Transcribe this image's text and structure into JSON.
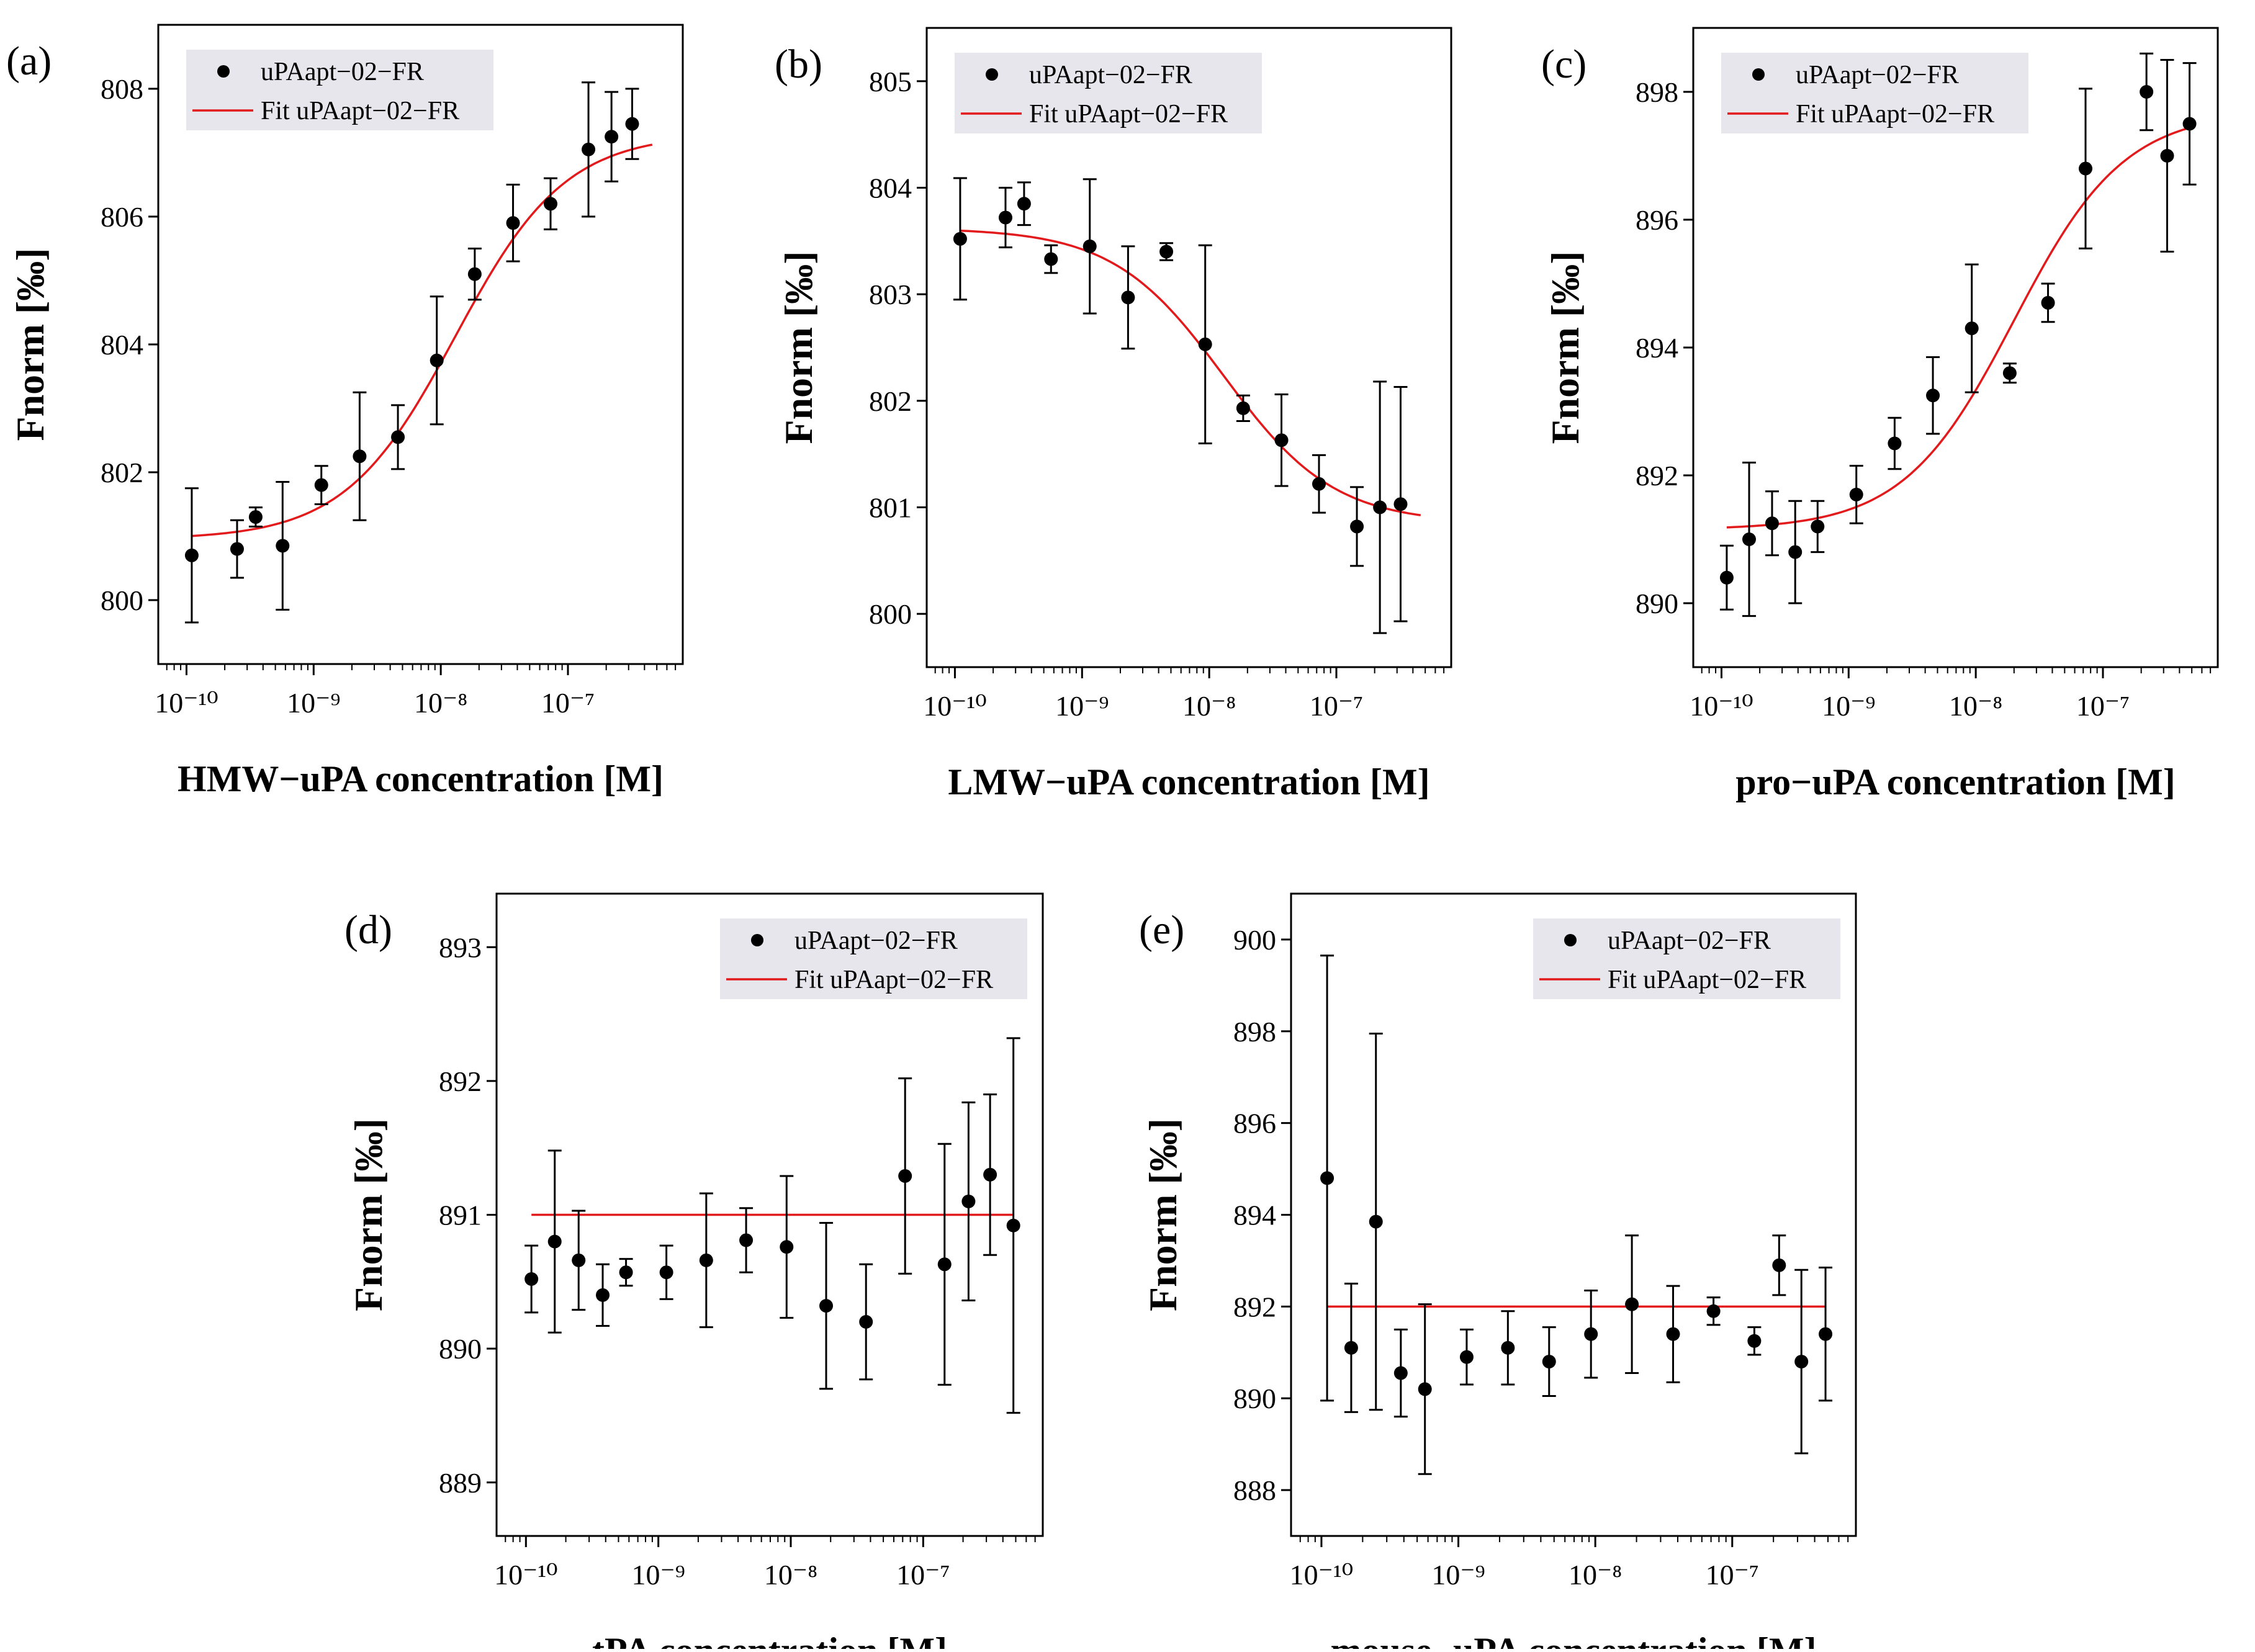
{
  "colors": {
    "fit": "#e31a1c",
    "points": "#000000",
    "legend_bg": "#e6e6ec",
    "axis": "#000000"
  },
  "chart_data": [
    {
      "type": "scatter",
      "panel": "(a)",
      "xlabel": "HMW−uPA concentration [M]",
      "ylabel": "Fnorm [‰]",
      "xscale": "log",
      "xlim": [
        6e-11,
        8e-07
      ],
      "ylim": [
        799.0,
        809.0
      ],
      "yticks": [
        800,
        802,
        804,
        806,
        808
      ],
      "xticks": [
        1e-10,
        1e-09,
        1e-08,
        1e-07
      ],
      "xtick_labels": [
        "10⁻¹⁰",
        "10⁻⁹",
        "10⁻⁸",
        "10⁻⁷"
      ],
      "legend": [
        "uPAapt−02−FR",
        "Fit uPAapt−02−FR"
      ],
      "series": [
        {
          "name": "uPAapt−02−FR",
          "x": [
            1.1e-10,
            2.5e-10,
            3.5e-10,
            5.7e-10,
            1.15e-09,
            2.3e-09,
            4.6e-09,
            9.3e-09,
            1.85e-08,
            3.7e-08,
            7.3e-08,
            1.45e-07,
            2.2e-07,
            3.2e-07
          ],
          "y": [
            800.7,
            800.8,
            801.3,
            800.85,
            801.8,
            802.25,
            802.55,
            803.75,
            805.1,
            805.9,
            806.2,
            807.05,
            807.25,
            807.45
          ],
          "err": [
            1.05,
            0.45,
            0.15,
            1.0,
            0.3,
            1.0,
            0.5,
            1.0,
            0.4,
            0.6,
            0.4,
            1.05,
            0.7,
            0.55
          ]
        }
      ],
      "fit": {
        "name": "Fit uPAapt−02−FR",
        "bottom": 800.95,
        "top": 807.3,
        "kd": 1.3e-08,
        "hill": 1.0,
        "x0": 1.1e-10,
        "x1": 4.6e-07
      }
    },
    {
      "type": "scatter",
      "panel": "(b)",
      "xlabel": "LMW−uPA concentration [M]",
      "ylabel": "Fnorm [‰]",
      "xscale": "log",
      "xlim": [
        6e-11,
        8e-07
      ],
      "ylim": [
        799.5,
        805.5
      ],
      "yticks": [
        800,
        801,
        802,
        803,
        804,
        805
      ],
      "xticks": [
        1e-10,
        1e-09,
        1e-08,
        1e-07
      ],
      "xtick_labels": [
        "10⁻¹⁰",
        "10⁻⁹",
        "10⁻⁸",
        "10⁻⁷"
      ],
      "legend": [
        "uPAapt−02−FR",
        "Fit uPAapt−02−FR"
      ],
      "series": [
        {
          "name": "uPAapt−02−FR",
          "x": [
            1.1e-10,
            2.5e-10,
            3.5e-10,
            5.7e-10,
            1.15e-09,
            2.3e-09,
            4.6e-09,
            9.3e-09,
            1.85e-08,
            3.7e-08,
            7.3e-08,
            1.45e-07,
            2.2e-07,
            3.2e-07
          ],
          "y": [
            803.52,
            803.72,
            803.85,
            803.33,
            803.45,
            802.97,
            803.4,
            802.53,
            801.93,
            801.63,
            801.22,
            800.82,
            801.0,
            801.03
          ],
          "err": [
            0.57,
            0.28,
            0.2,
            0.13,
            0.63,
            0.48,
            0.08,
            0.93,
            0.12,
            0.43,
            0.27,
            0.37,
            1.18,
            1.1
          ]
        }
      ],
      "fit": {
        "name": "Fit uPAapt−02−FR",
        "bottom": 800.85,
        "top": 803.62,
        "kd": 1.3e-08,
        "hill": -1.0,
        "x0": 1.1e-10,
        "x1": 4.6e-07
      }
    },
    {
      "type": "scatter",
      "panel": "(c)",
      "xlabel": "pro−uPA concentration [M]",
      "ylabel": "Fnorm [‰]",
      "xscale": "log",
      "xlim": [
        6e-11,
        8e-07
      ],
      "ylim": [
        889.0,
        899.0
      ],
      "yticks": [
        890,
        892,
        894,
        896,
        898
      ],
      "xticks": [
        1e-10,
        1e-09,
        1e-08,
        1e-07
      ],
      "xtick_labels": [
        "10⁻¹⁰",
        "10⁻⁹",
        "10⁻⁸",
        "10⁻⁷"
      ],
      "legend": [
        "uPAapt−02−FR",
        "Fit uPAapt−02−FR"
      ],
      "series": [
        {
          "name": "uPAapt−02−FR",
          "x": [
            1.1e-10,
            1.65e-10,
            2.5e-10,
            3.8e-10,
            5.7e-10,
            1.15e-09,
            2.3e-09,
            4.6e-09,
            9.3e-09,
            1.85e-08,
            3.7e-08,
            7.3e-08,
            2.2e-07,
            3.2e-07,
            4.8e-07
          ],
          "y": [
            890.4,
            891.0,
            891.25,
            890.8,
            891.2,
            891.7,
            892.5,
            893.25,
            894.3,
            893.6,
            894.7,
            896.8,
            898.0,
            897.0,
            897.5
          ],
          "err": [
            0.5,
            1.2,
            0.5,
            0.8,
            0.4,
            0.45,
            0.4,
            0.6,
            1.0,
            0.15,
            0.3,
            1.25,
            0.6,
            1.5,
            0.95
          ]
        }
      ],
      "fit": {
        "name": "Fit uPAapt−02−FR",
        "bottom": 891.15,
        "top": 897.7,
        "kd": 2e-08,
        "hill": 1.0,
        "x0": 1.1e-10,
        "x1": 4.6e-07
      }
    },
    {
      "type": "scatter",
      "panel": "(d)",
      "xlabel": "tPA concentration [M]",
      "ylabel": "Fnorm [‰]",
      "xscale": "log",
      "xlim": [
        6e-11,
        8e-07
      ],
      "ylim": [
        888.6,
        893.4
      ],
      "yticks": [
        889,
        890,
        891,
        892,
        893
      ],
      "xticks": [
        1e-10,
        1e-09,
        1e-08,
        1e-07
      ],
      "xtick_labels": [
        "10⁻¹⁰",
        "10⁻⁹",
        "10⁻⁸",
        "10⁻⁷"
      ],
      "legend": [
        "uPAapt−02−FR",
        "Fit uPAapt−02−FR"
      ],
      "series": [
        {
          "name": "uPAapt−02−FR",
          "x": [
            1.1e-10,
            1.65e-10,
            2.5e-10,
            3.8e-10,
            5.7e-10,
            1.15e-09,
            2.3e-09,
            4.6e-09,
            9.3e-09,
            1.85e-08,
            3.7e-08,
            7.3e-08,
            1.45e-07,
            2.2e-07,
            3.2e-07,
            4.8e-07
          ],
          "y": [
            890.52,
            890.8,
            890.66,
            890.4,
            890.57,
            890.57,
            890.66,
            890.81,
            890.76,
            890.32,
            890.2,
            891.29,
            890.63,
            891.1,
            891.3,
            890.92
          ],
          "err": [
            0.25,
            0.68,
            0.37,
            0.23,
            0.1,
            0.2,
            0.5,
            0.24,
            0.53,
            0.62,
            0.43,
            0.73,
            0.9,
            0.74,
            0.6,
            1.4
          ]
        }
      ],
      "fit": {
        "name": "Fit uPAapt−02−FR",
        "constant": 891.0,
        "x0": 1.1e-10,
        "x1": 4.8e-07
      }
    },
    {
      "type": "scatter",
      "panel": "(e)",
      "xlabel": "mouse−uPA concentration [M]",
      "ylabel": "Fnorm [‰]",
      "xscale": "log",
      "xlim": [
        6e-11,
        8e-07
      ],
      "ylim": [
        887.0,
        901.0
      ],
      "yticks": [
        888,
        890,
        892,
        894,
        896,
        898,
        900
      ],
      "xticks": [
        1e-10,
        1e-09,
        1e-08,
        1e-07
      ],
      "xtick_labels": [
        "10⁻¹⁰",
        "10⁻⁹",
        "10⁻⁸",
        "10⁻⁷"
      ],
      "legend": [
        "uPAapt−02−FR",
        "Fit uPAapt−02−FR"
      ],
      "series": [
        {
          "name": "uPAapt−02−FR",
          "x": [
            1.1e-10,
            1.65e-10,
            2.5e-10,
            3.8e-10,
            5.7e-10,
            1.15e-09,
            2.3e-09,
            4.6e-09,
            9.3e-09,
            1.85e-08,
            3.7e-08,
            7.3e-08,
            1.45e-07,
            2.2e-07,
            3.2e-07,
            4.8e-07
          ],
          "y": [
            894.8,
            891.1,
            893.85,
            890.55,
            890.2,
            890.9,
            891.1,
            890.8,
            891.4,
            892.05,
            891.4,
            891.9,
            891.25,
            892.9,
            890.8,
            891.4
          ],
          "err": [
            4.85,
            1.4,
            4.1,
            0.95,
            1.85,
            0.6,
            0.8,
            0.75,
            0.95,
            1.5,
            1.05,
            0.3,
            0.3,
            0.65,
            2.0,
            1.45
          ]
        }
      ],
      "fit": {
        "name": "Fit uPAapt−02−FR",
        "constant": 892.0,
        "x0": 1.1e-10,
        "x1": 4.8e-07
      }
    }
  ]
}
